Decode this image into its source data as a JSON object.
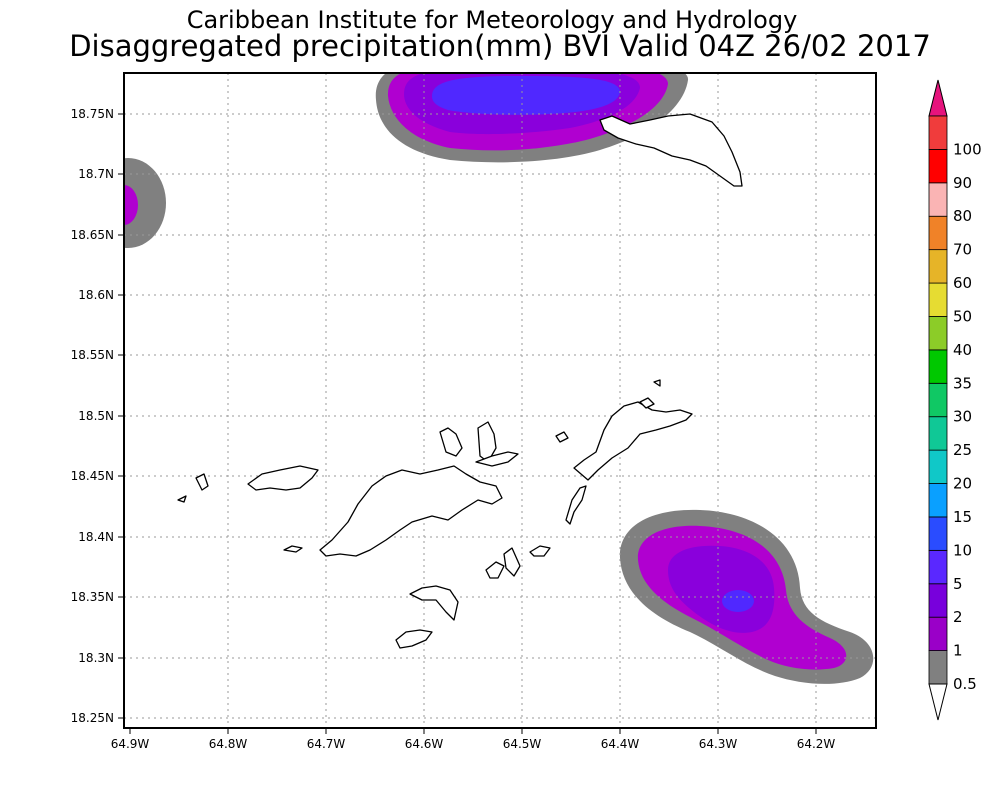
{
  "title": {
    "line1": "Caribbean Institute for Meteorology and Hydrology",
    "line2": "Disaggregated precipitation(mm) BVI Valid 04Z 26/02 2017"
  },
  "axes": {
    "lat_labels": [
      "18.75N",
      "18.7N",
      "18.65N",
      "18.6N",
      "18.55N",
      "18.5N",
      "18.45N",
      "18.4N",
      "18.35N",
      "18.3N",
      "18.25N"
    ],
    "lon_labels": [
      "64.9W",
      "64.8W",
      "64.7W",
      "64.6W",
      "64.5W",
      "64.4W",
      "64.3W",
      "64.2W"
    ]
  },
  "colorbar": {
    "levels": [
      "0.5",
      "1",
      "2",
      "5",
      "10",
      "15",
      "20",
      "25",
      "30",
      "35",
      "40",
      "50",
      "60",
      "70",
      "80",
      "90",
      "100"
    ],
    "colors": [
      "#808080",
      "#9a00c8",
      "#7800dc",
      "#5a28ff",
      "#2a4cff",
      "#0aa0ff",
      "#10c8c8",
      "#10c896",
      "#10c864",
      "#00c800",
      "#8ccc28",
      "#e6dc32",
      "#e6b428",
      "#f08228",
      "#fab4b4",
      "#ff0000",
      "#f03c3c"
    ],
    "top_arrow_color": "#e6147d",
    "bottom_arrow_color": "#ffffff"
  },
  "map_features": {
    "precip_colors": {
      "gray": "#808080",
      "light_purple": "#b000d0",
      "mid_purple": "#8a00dc",
      "blue": "#5028ff"
    },
    "land_color": "#ffffff",
    "coast_color": "#000000"
  }
}
